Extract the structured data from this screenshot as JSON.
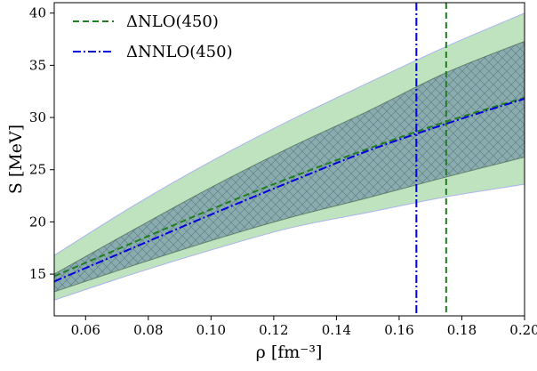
{
  "chart_data": {
    "type": "line",
    "xlabel": "ρ [fm⁻³]",
    "ylabel": "S [MeV]",
    "xlim": [
      0.05,
      0.2
    ],
    "ylim": [
      11,
      41
    ],
    "xticks": [
      0.06,
      0.08,
      0.1,
      0.12,
      0.14,
      0.16,
      0.18,
      0.2
    ],
    "xtick_labels": [
      "0.06",
      "0.08",
      "0.10",
      "0.12",
      "0.14",
      "0.16",
      "0.18",
      "0.20"
    ],
    "yticks": [
      15,
      20,
      25,
      30,
      35,
      40
    ],
    "ytick_labels": [
      "15",
      "20",
      "25",
      "30",
      "35",
      "40"
    ],
    "grid": false,
    "legend_position": "top-left",
    "series": [
      {
        "name": "ΔNLO(450)",
        "style": "dashed",
        "color": "#1f7f1f",
        "x": [
          0.05,
          0.075,
          0.1,
          0.125,
          0.15,
          0.175,
          0.2
        ],
        "y": [
          14.8,
          18.0,
          21.2,
          24.2,
          27.0,
          29.6,
          31.9
        ],
        "band_lower": [
          12.5,
          15.0,
          17.3,
          19.4,
          20.9,
          22.4,
          23.6
        ],
        "band_upper": [
          16.8,
          21.5,
          25.8,
          29.7,
          33.3,
          36.8,
          40.0
        ],
        "band_color": "#2ca02c",
        "saturation_density": 0.175
      },
      {
        "name": "ΔNNLO(450)",
        "style": "dashdot",
        "color": "#0000dd",
        "x": [
          0.05,
          0.075,
          0.1,
          0.125,
          0.15,
          0.175,
          0.2
        ],
        "y": [
          14.3,
          17.5,
          20.7,
          23.8,
          26.8,
          29.4,
          31.8
        ],
        "band_lower": [
          13.3,
          15.8,
          18.2,
          20.4,
          22.3,
          24.3,
          26.2
        ],
        "band_upper": [
          15.0,
          19.2,
          23.3,
          27.1,
          30.6,
          34.3,
          37.3
        ],
        "band_color": "#5c7fa0",
        "band_hatch": "cross",
        "saturation_density": 0.1655
      }
    ]
  }
}
